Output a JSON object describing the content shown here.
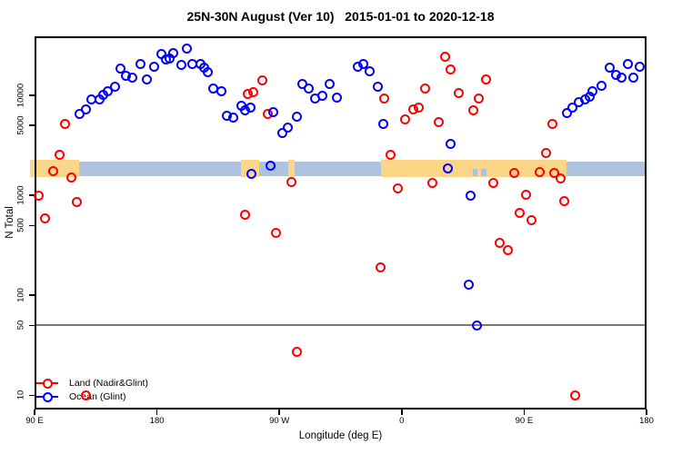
{
  "title": "25N-30N August (Ver 10)   2015-01-01 to 2020-12-18",
  "chart_data": {
    "type": "scatter",
    "title": "25N-30N August (Ver 10)   2015-01-01 to 2020-12-18",
    "xlabel": "Longitude (deg E)",
    "ylabel": "N Total",
    "grid": false,
    "x_axis": {
      "lim": [
        90,
        540
      ],
      "ticks": [
        {
          "v": 90,
          "label": "90 E"
        },
        {
          "v": 180,
          "label": "180"
        },
        {
          "v": 270,
          "label": "90 W"
        },
        {
          "v": 360,
          "label": "0"
        },
        {
          "v": 450,
          "label": "90 E"
        },
        {
          "v": 540,
          "label": "180"
        }
      ]
    },
    "y_axis": {
      "scale": "log",
      "lim": [
        7.2,
        39000
      ],
      "ticks": [
        {
          "v": 10,
          "label": "10"
        },
        {
          "v": 50,
          "label": "50"
        },
        {
          "v": 100,
          "label": "100"
        },
        {
          "v": 500,
          "label": "500"
        },
        {
          "v": 1000,
          "label": "1000"
        },
        {
          "v": 5000,
          "label": "5000"
        },
        {
          "v": 10000,
          "label": "10000"
        }
      ]
    },
    "reference_line": {
      "value": 50,
      "color": "#7a7a7a"
    },
    "map_band": {
      "n_top": 2200,
      "n_bottom": 1550,
      "colors": {
        "land": "#FBD687",
        "ocean": "#AEC3DE"
      },
      "segments": [
        {
          "type": "land",
          "lon": [
            90,
            123
          ]
        },
        {
          "type": "ocean",
          "lon": [
            123,
            242
          ]
        },
        {
          "type": "land",
          "lon": [
            242,
            255
          ]
        },
        {
          "type": "ocean",
          "lon": [
            255,
            276.5
          ]
        },
        {
          "type": "land",
          "lon": [
            276.5,
            281
          ]
        },
        {
          "type": "ocean",
          "lon": [
            281,
            345
          ]
        },
        {
          "type": "land",
          "lon": [
            345,
            481
          ]
        },
        {
          "type": "ocean",
          "lon": [
            481,
            540
          ]
        }
      ],
      "ocean_specks": [
        [
          412,
          415.5
        ],
        [
          418.5,
          422
        ]
      ]
    },
    "series": [
      {
        "name": "Land (Nadir&Glint)",
        "color": "#FF0000",
        "points": [
          [
            112.7,
            5200
          ],
          [
            108.1,
            2560
          ],
          [
            103.4,
            1760
          ],
          [
            117.4,
            1520
          ],
          [
            93.3,
            1000
          ],
          [
            120.8,
            864
          ],
          [
            97.4,
            594
          ],
          [
            247.1,
            10300
          ],
          [
            251.1,
            10700
          ],
          [
            257.8,
            14000
          ],
          [
            261.8,
            6580
          ],
          [
            278.6,
            1370
          ],
          [
            245.1,
            645
          ],
          [
            267.8,
            424
          ],
          [
            283.2,
            27
          ],
          [
            347.4,
            9400
          ],
          [
            352.1,
            2560
          ],
          [
            362.8,
            5800
          ],
          [
            368.8,
            7310
          ],
          [
            372.2,
            7620
          ],
          [
            376.9,
            11600
          ],
          [
            386.9,
            5450
          ],
          [
            392.2,
            24600
          ],
          [
            396.2,
            18000
          ],
          [
            402.2,
            10500
          ],
          [
            412.9,
            7150
          ],
          [
            416.9,
            9400
          ],
          [
            422.3,
            14300
          ],
          [
            356.8,
            1180
          ],
          [
            382.2,
            1340
          ],
          [
            344.1,
            191
          ],
          [
            427,
            1320
          ],
          [
            432.3,
            337
          ],
          [
            438.3,
            281
          ],
          [
            443,
            1680
          ],
          [
            447,
            668
          ],
          [
            451.7,
            1020
          ],
          [
            455.7,
            565
          ],
          [
            461.1,
            1710
          ],
          [
            466.4,
            2680
          ],
          [
            471.1,
            5200
          ],
          [
            472.4,
            1660
          ],
          [
            477.1,
            1470
          ],
          [
            479.8,
            884
          ],
          [
            487.2,
            10
          ],
          [
            128.1,
            10
          ]
        ]
      },
      {
        "name": "Ocean (Glint)",
        "color": "#0000FF",
        "points": [
          [
            122.8,
            6580
          ],
          [
            128.1,
            7310
          ],
          [
            132.1,
            9200
          ],
          [
            138.1,
            9020
          ],
          [
            140.8,
            10200
          ],
          [
            143.5,
            11100
          ],
          [
            149.5,
            12100
          ],
          [
            153.5,
            18400
          ],
          [
            156.9,
            15800
          ],
          [
            162.2,
            14900
          ],
          [
            168.2,
            20800
          ],
          [
            172.9,
            14300
          ],
          [
            177.6,
            19500
          ],
          [
            183.6,
            25700
          ],
          [
            186.3,
            23100
          ],
          [
            189.6,
            23600
          ],
          [
            192.3,
            26700
          ],
          [
            198.3,
            20000
          ],
          [
            202.3,
            29100
          ],
          [
            206.3,
            20400
          ],
          [
            211.7,
            20800
          ],
          [
            214.4,
            18800
          ],
          [
            217.7,
            17200
          ],
          [
            221.1,
            11600
          ],
          [
            227.1,
            11100
          ],
          [
            231.1,
            6300
          ],
          [
            236.4,
            6050
          ],
          [
            241.8,
            7940
          ],
          [
            245.1,
            7150
          ],
          [
            248.5,
            7620
          ],
          [
            265.8,
            6860
          ],
          [
            271.9,
            4240
          ],
          [
            275.9,
            4800
          ],
          [
            282.6,
            6180
          ],
          [
            287.2,
            12900
          ],
          [
            291.9,
            11600
          ],
          [
            296.6,
            9400
          ],
          [
            301.3,
            10000
          ],
          [
            307.3,
            12900
          ],
          [
            312.6,
            9600
          ],
          [
            327.4,
            19500
          ],
          [
            332,
            20400
          ],
          [
            336.7,
            17600
          ],
          [
            342.7,
            12100
          ],
          [
            346.1,
            5130
          ],
          [
            395.6,
            3300
          ],
          [
            263.2,
            2000
          ],
          [
            249.8,
            1650
          ],
          [
            393.6,
            1840
          ],
          [
            410.3,
            1000
          ],
          [
            409.6,
            129
          ],
          [
            415.6,
            50
          ],
          [
            481.8,
            6720
          ],
          [
            485.8,
            7620
          ],
          [
            490.5,
            8630
          ],
          [
            495.2,
            9020
          ],
          [
            497.9,
            9770
          ],
          [
            500.5,
            11100
          ],
          [
            507.2,
            12600
          ],
          [
            512.6,
            19100
          ],
          [
            517.3,
            16200
          ],
          [
            521.3,
            15200
          ],
          [
            526.6,
            20400
          ],
          [
            530.6,
            15200
          ],
          [
            535.3,
            19500
          ]
        ]
      }
    ]
  },
  "legend": {
    "items": [
      {
        "label": "Land (Nadir&Glint)",
        "color": "#FF0000"
      },
      {
        "label": "Ocean (Glint)",
        "color": "#0000FF"
      }
    ]
  }
}
